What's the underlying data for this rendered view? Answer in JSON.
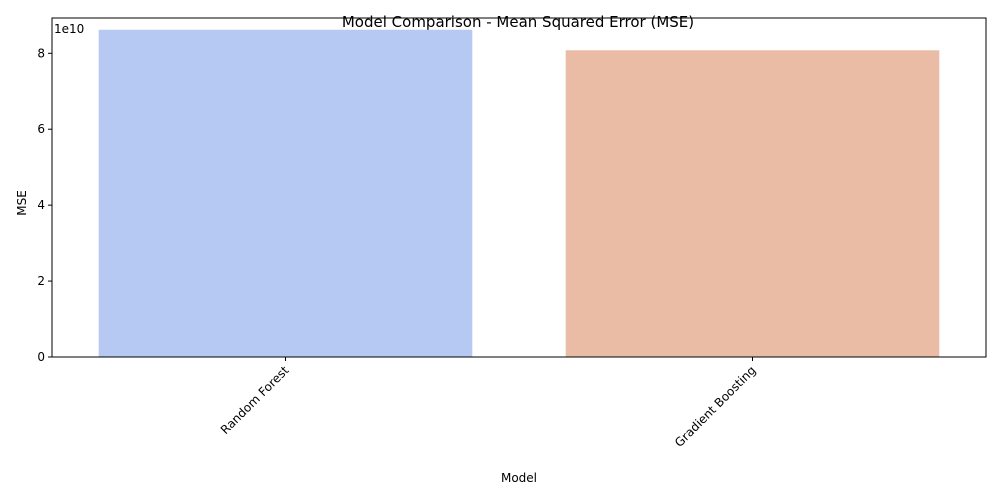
{
  "chart_data": {
    "type": "bar",
    "title": "Model Comparison - Mean Squared Error (MSE)",
    "xlabel": "Model",
    "ylabel": "MSE",
    "categories": [
      "Random Forest",
      "Gradient Boosting"
    ],
    "values": [
      86200000000,
      80800000000
    ],
    "bar_colors": [
      "#b5c9f3",
      "#eabca6"
    ],
    "ylim": [
      0,
      89300000000
    ],
    "y_ticks": [
      0,
      20000000000,
      40000000000,
      60000000000,
      80000000000
    ],
    "y_tick_labels": [
      "0",
      "2",
      "4",
      "6",
      "8"
    ],
    "y_offset_label": "1e10",
    "x_tick_rotation": 45,
    "grid": false,
    "legend": "none"
  }
}
